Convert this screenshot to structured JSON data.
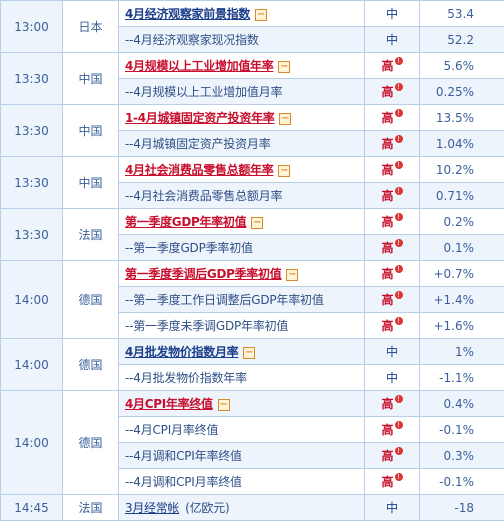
{
  "rows": [
    {
      "time": "13:00",
      "country": "日本",
      "span": 2,
      "events": [
        {
          "title": "4月经济观察家前景指数",
          "style": "main-blue",
          "expand": true,
          "importance": "中",
          "value": "53.4"
        },
        {
          "title": "--4月经济观察家现况指数",
          "style": "sub",
          "expand": false,
          "importance": "中",
          "value": "52.2"
        }
      ]
    },
    {
      "time": "13:30",
      "country": "中国",
      "span": 2,
      "events": [
        {
          "title": "4月规模以上工业增加值年率",
          "style": "main-red",
          "expand": true,
          "importance": "高",
          "value": "5.6%"
        },
        {
          "title": "--4月规模以上工业增加值月率",
          "style": "sub",
          "expand": false,
          "importance": "高",
          "value": "0.25%"
        }
      ]
    },
    {
      "time": "13:30",
      "country": "中国",
      "span": 2,
      "events": [
        {
          "title": "1-4月城镇固定资产投资年率",
          "style": "main-red",
          "expand": true,
          "importance": "高",
          "value": "13.5%"
        },
        {
          "title": "--4月城镇固定资产投资月率",
          "style": "sub",
          "expand": false,
          "importance": "高",
          "value": "1.04%"
        }
      ]
    },
    {
      "time": "13:30",
      "country": "中国",
      "span": 2,
      "events": [
        {
          "title": "4月社会消费品零售总额年率",
          "style": "main-red",
          "expand": true,
          "importance": "高",
          "value": "10.2%"
        },
        {
          "title": "--4月社会消费品零售总额月率",
          "style": "sub",
          "expand": false,
          "importance": "高",
          "value": "0.71%"
        }
      ]
    },
    {
      "time": "13:30",
      "country": "法国",
      "span": 2,
      "events": [
        {
          "title": "第一季度GDP年率初值",
          "style": "main-red",
          "expand": true,
          "importance": "高",
          "value": "0.2%"
        },
        {
          "title": "--第一季度GDP季率初值",
          "style": "sub",
          "expand": false,
          "importance": "高",
          "value": "0.1%"
        }
      ]
    },
    {
      "time": "14:00",
      "country": "德国",
      "span": 3,
      "events": [
        {
          "title": "第一季度季调后GDP季率初值",
          "style": "main-red",
          "expand": true,
          "importance": "高",
          "value": "+0.7%"
        },
        {
          "title": "--第一季度工作日调整后GDP年率初值",
          "style": "sub",
          "expand": false,
          "importance": "高",
          "value": "+1.4%"
        },
        {
          "title": "--第一季度未季调GDP年率初值",
          "style": "sub",
          "expand": false,
          "importance": "高",
          "value": "+1.6%"
        }
      ]
    },
    {
      "time": "14:00",
      "country": "德国",
      "span": 2,
      "events": [
        {
          "title": "4月批发物价指数月率",
          "style": "main-blue",
          "expand": true,
          "importance": "中",
          "value": "1%"
        },
        {
          "title": "--4月批发物价指数年率",
          "style": "sub",
          "expand": false,
          "importance": "中",
          "value": "-1.1%"
        }
      ]
    },
    {
      "time": "14:00",
      "country": "德国",
      "span": 4,
      "events": [
        {
          "title": "4月CPI年率终值",
          "style": "main-red",
          "expand": true,
          "importance": "高",
          "value": "0.4%"
        },
        {
          "title": "--4月CPI月率终值",
          "style": "sub",
          "expand": false,
          "importance": "高",
          "value": "-0.1%"
        },
        {
          "title": "--4月调和CPI年率终值",
          "style": "sub",
          "expand": false,
          "importance": "高",
          "value": "0.3%"
        },
        {
          "title": "--4月调和CPI月率终值",
          "style": "sub",
          "expand": false,
          "importance": "高",
          "value": "-0.1%"
        }
      ]
    },
    {
      "time": "14:45",
      "country": "法国",
      "span": 1,
      "events": [
        {
          "title": "3月经常帐",
          "unit": "(亿欧元)",
          "style": "main-blue-nounder",
          "expand": false,
          "importance": "中",
          "value": "-18"
        }
      ]
    }
  ],
  "icons": {
    "expand": "minus-box-icon",
    "alert": "alert-bell-icon"
  },
  "colors": {
    "high": "#c8102e",
    "mid": "#1b3e8a",
    "border": "#b9cfe9",
    "alt": "#eef4fc"
  }
}
